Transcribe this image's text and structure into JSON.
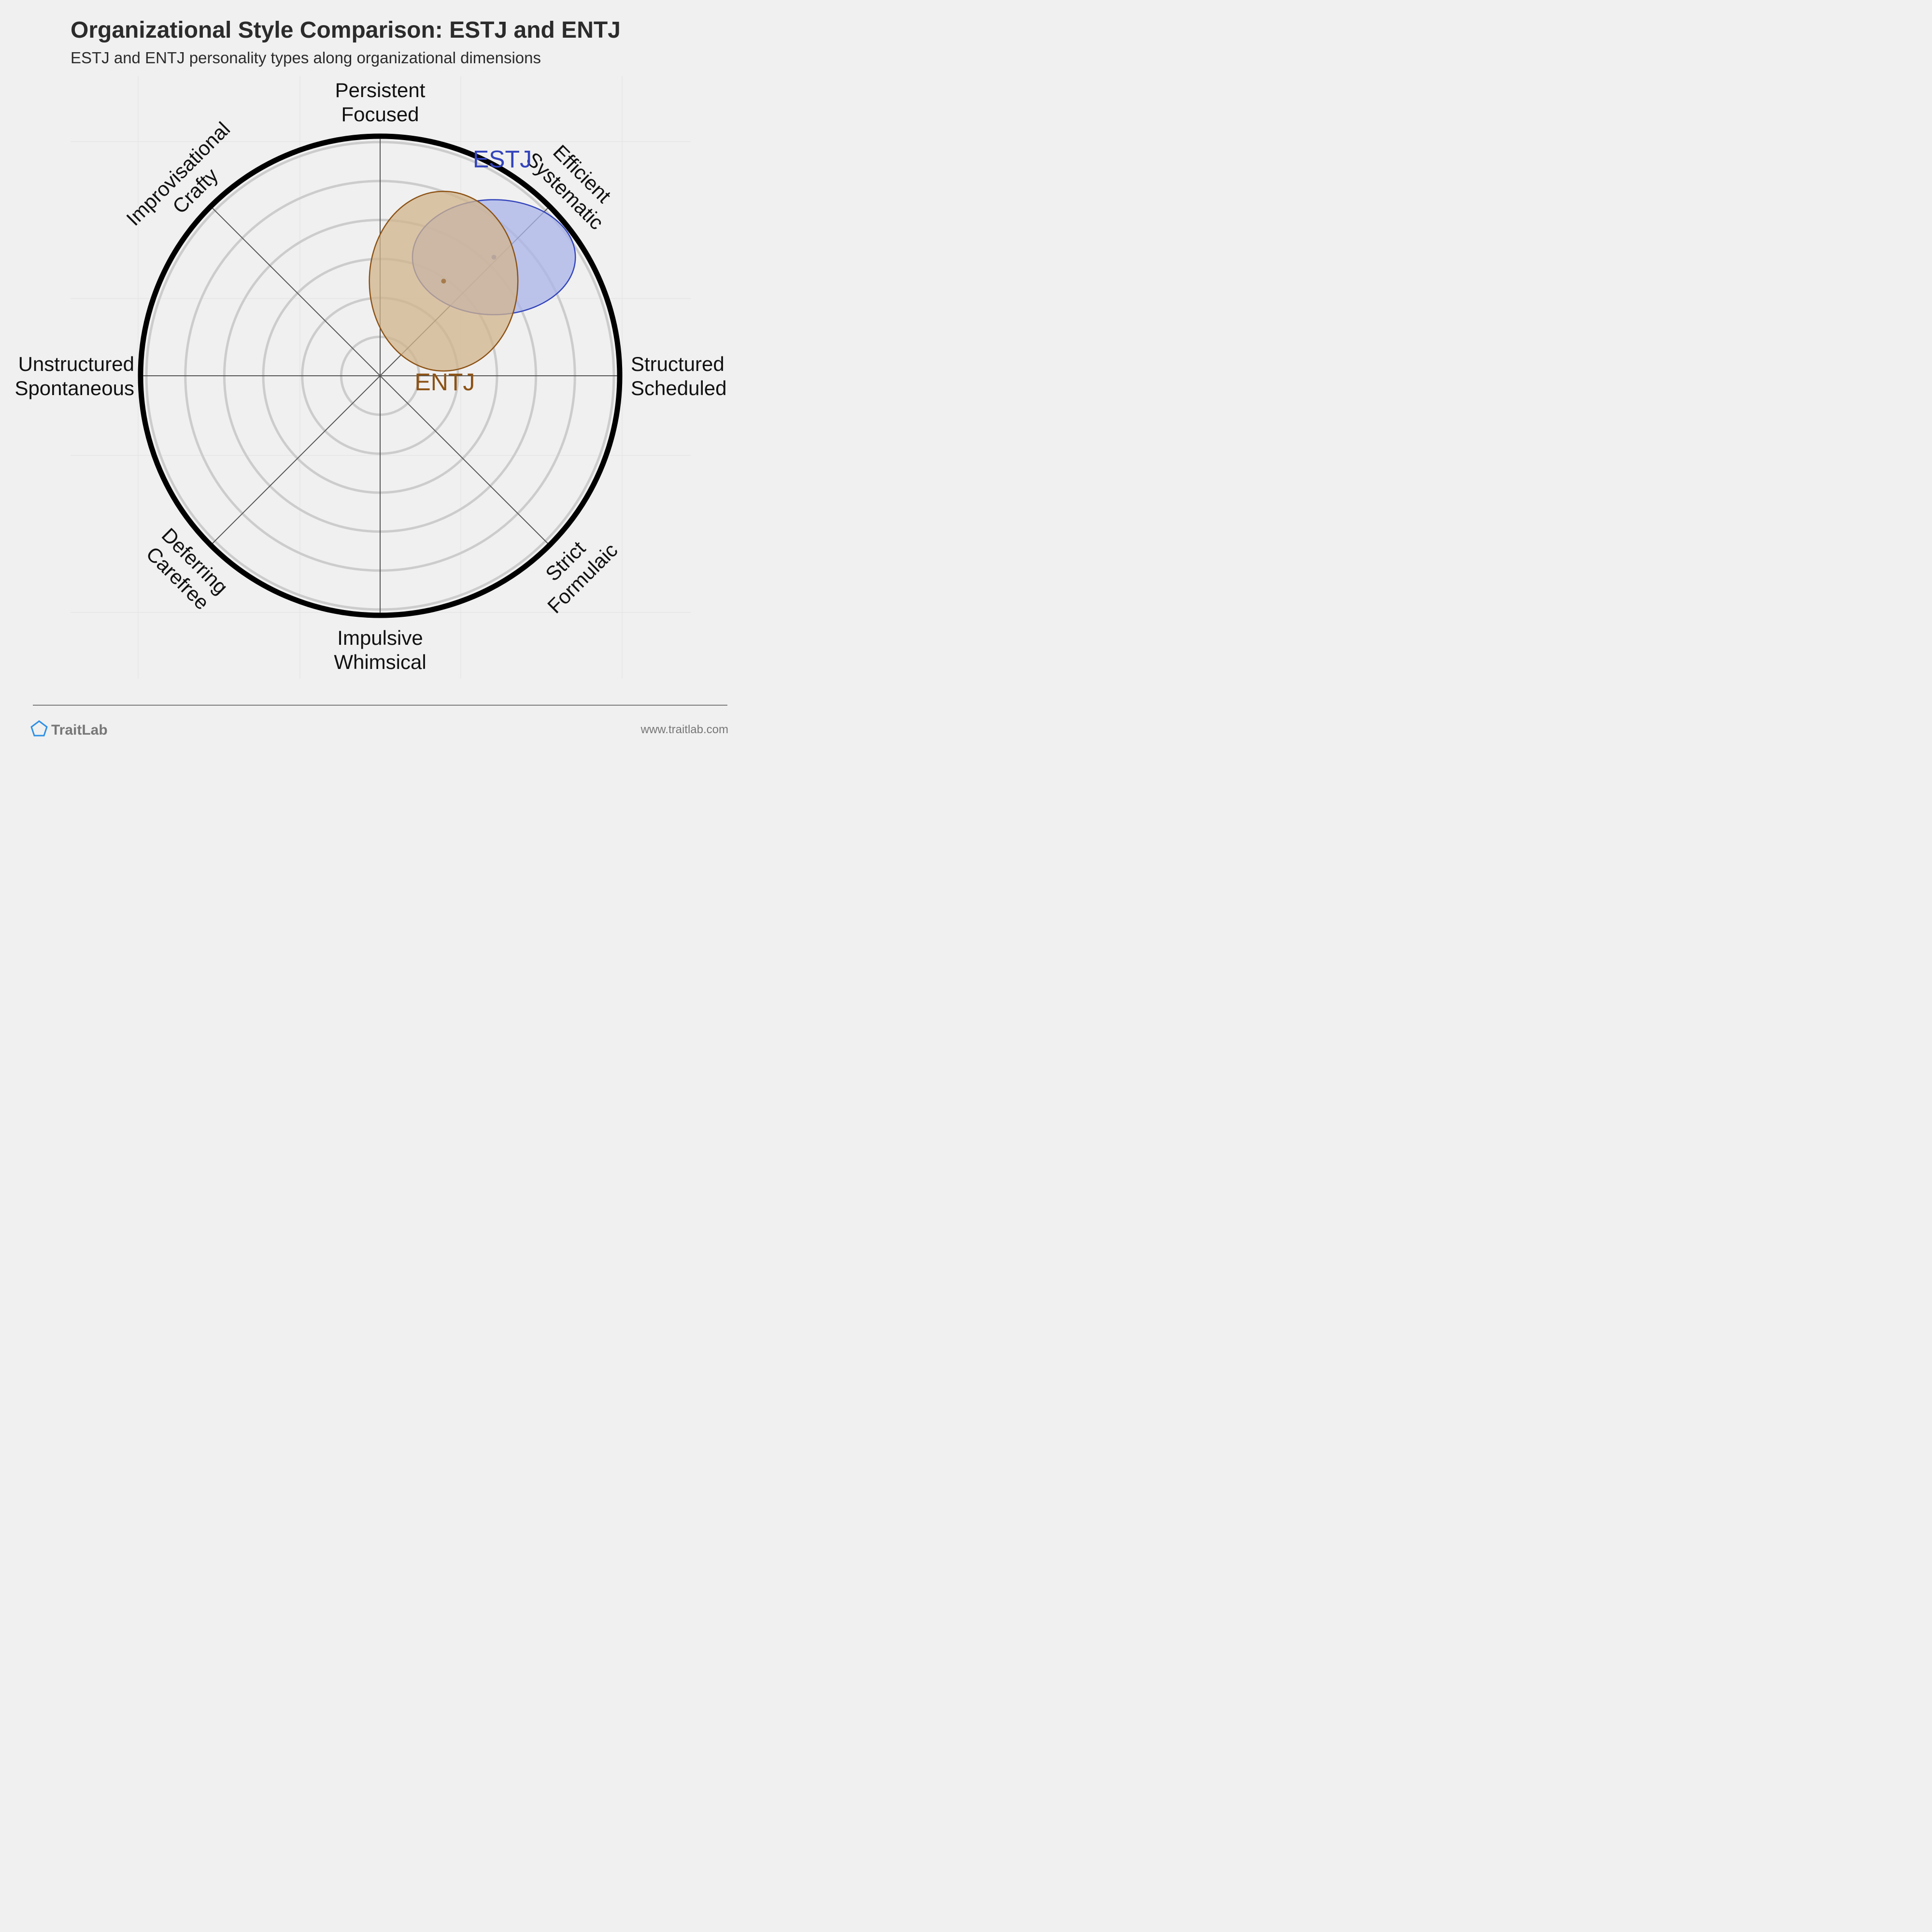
{
  "chart_data": {
    "type": "scatter",
    "title": "Organizational Style Comparison: ESTJ and ENTJ",
    "subtitle": "ESTJ and ENTJ personality types along organizational dimensions",
    "axes": [
      {
        "angle_deg": 0,
        "lines": [
          "Structured",
          "Scheduled"
        ]
      },
      {
        "angle_deg": 45,
        "lines": [
          "Efficient",
          "Systematic"
        ]
      },
      {
        "angle_deg": 90,
        "lines": [
          "Persistent",
          "Focused"
        ]
      },
      {
        "angle_deg": 135,
        "lines": [
          "Improvisational",
          "Crafty"
        ]
      },
      {
        "angle_deg": 180,
        "lines": [
          "Unstructured",
          "Spontaneous"
        ]
      },
      {
        "angle_deg": 225,
        "lines": [
          "Deferring",
          "Carefree"
        ]
      },
      {
        "angle_deg": 270,
        "lines": [
          "Impulsive",
          "Whimsical"
        ]
      },
      {
        "angle_deg": 315,
        "lines": [
          "Strict",
          "Formulaic"
        ]
      }
    ],
    "x_range": [
      -1,
      1
    ],
    "y_range": [
      -1,
      1
    ],
    "rings": 6,
    "series": [
      {
        "name": "ESTJ",
        "center": [
          0.475,
          0.495
        ],
        "spread": [
          0.34,
          0.24
        ],
        "color": "#3344bb",
        "fill": "#aab4ea"
      },
      {
        "name": "ENTJ",
        "center": [
          0.265,
          0.395
        ],
        "spread": [
          0.31,
          0.375
        ],
        "color": "#8c5214",
        "fill": "#d2b48c"
      }
    ]
  },
  "footer": {
    "brand": "TraitLab",
    "url": "www.traitlab.com",
    "brand_color": "#2d8fe6"
  }
}
